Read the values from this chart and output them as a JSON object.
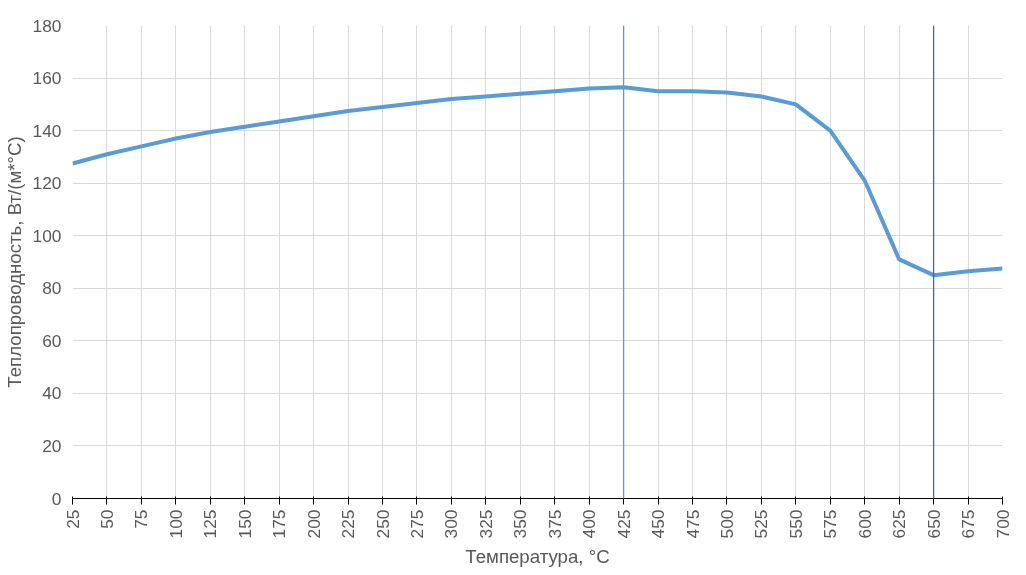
{
  "chart_data": {
    "type": "line",
    "xlabel": "Температура, °C",
    "ylabel": "Теплопроводность, Вт/(м*°С)",
    "x": [
      25,
      50,
      75,
      100,
      125,
      150,
      175,
      200,
      225,
      250,
      275,
      300,
      325,
      350,
      375,
      400,
      425,
      450,
      475,
      500,
      525,
      550,
      575,
      600,
      625,
      650,
      675,
      700
    ],
    "series": [
      {
        "color": "#5b9bd5",
        "values": [
          127.5,
          131,
          134,
          137,
          139.5,
          141.5,
          143.5,
          145.5,
          147.5,
          149,
          150.5,
          152,
          153,
          154,
          155,
          156,
          156.5,
          155,
          155,
          154.5,
          153,
          150,
          140,
          121,
          91,
          85,
          86.5,
          87.5
        ]
      }
    ],
    "xlim": [
      25,
      700
    ],
    "xticks": [
      25,
      50,
      75,
      100,
      125,
      150,
      175,
      200,
      225,
      250,
      275,
      300,
      325,
      350,
      375,
      400,
      425,
      450,
      475,
      500,
      525,
      550,
      575,
      600,
      625,
      650,
      675,
      700
    ],
    "ylim": [
      0,
      180
    ],
    "yticks": [
      0,
      20,
      40,
      60,
      80,
      100,
      120,
      140,
      160,
      180
    ],
    "grid": true,
    "marker": "none",
    "line_style": "solid",
    "ref_lines": [
      {
        "axis": "x",
        "value": 425,
        "color": "#5b9bd5"
      },
      {
        "axis": "x",
        "value": 650,
        "color": "#4a6a8c"
      }
    ]
  }
}
